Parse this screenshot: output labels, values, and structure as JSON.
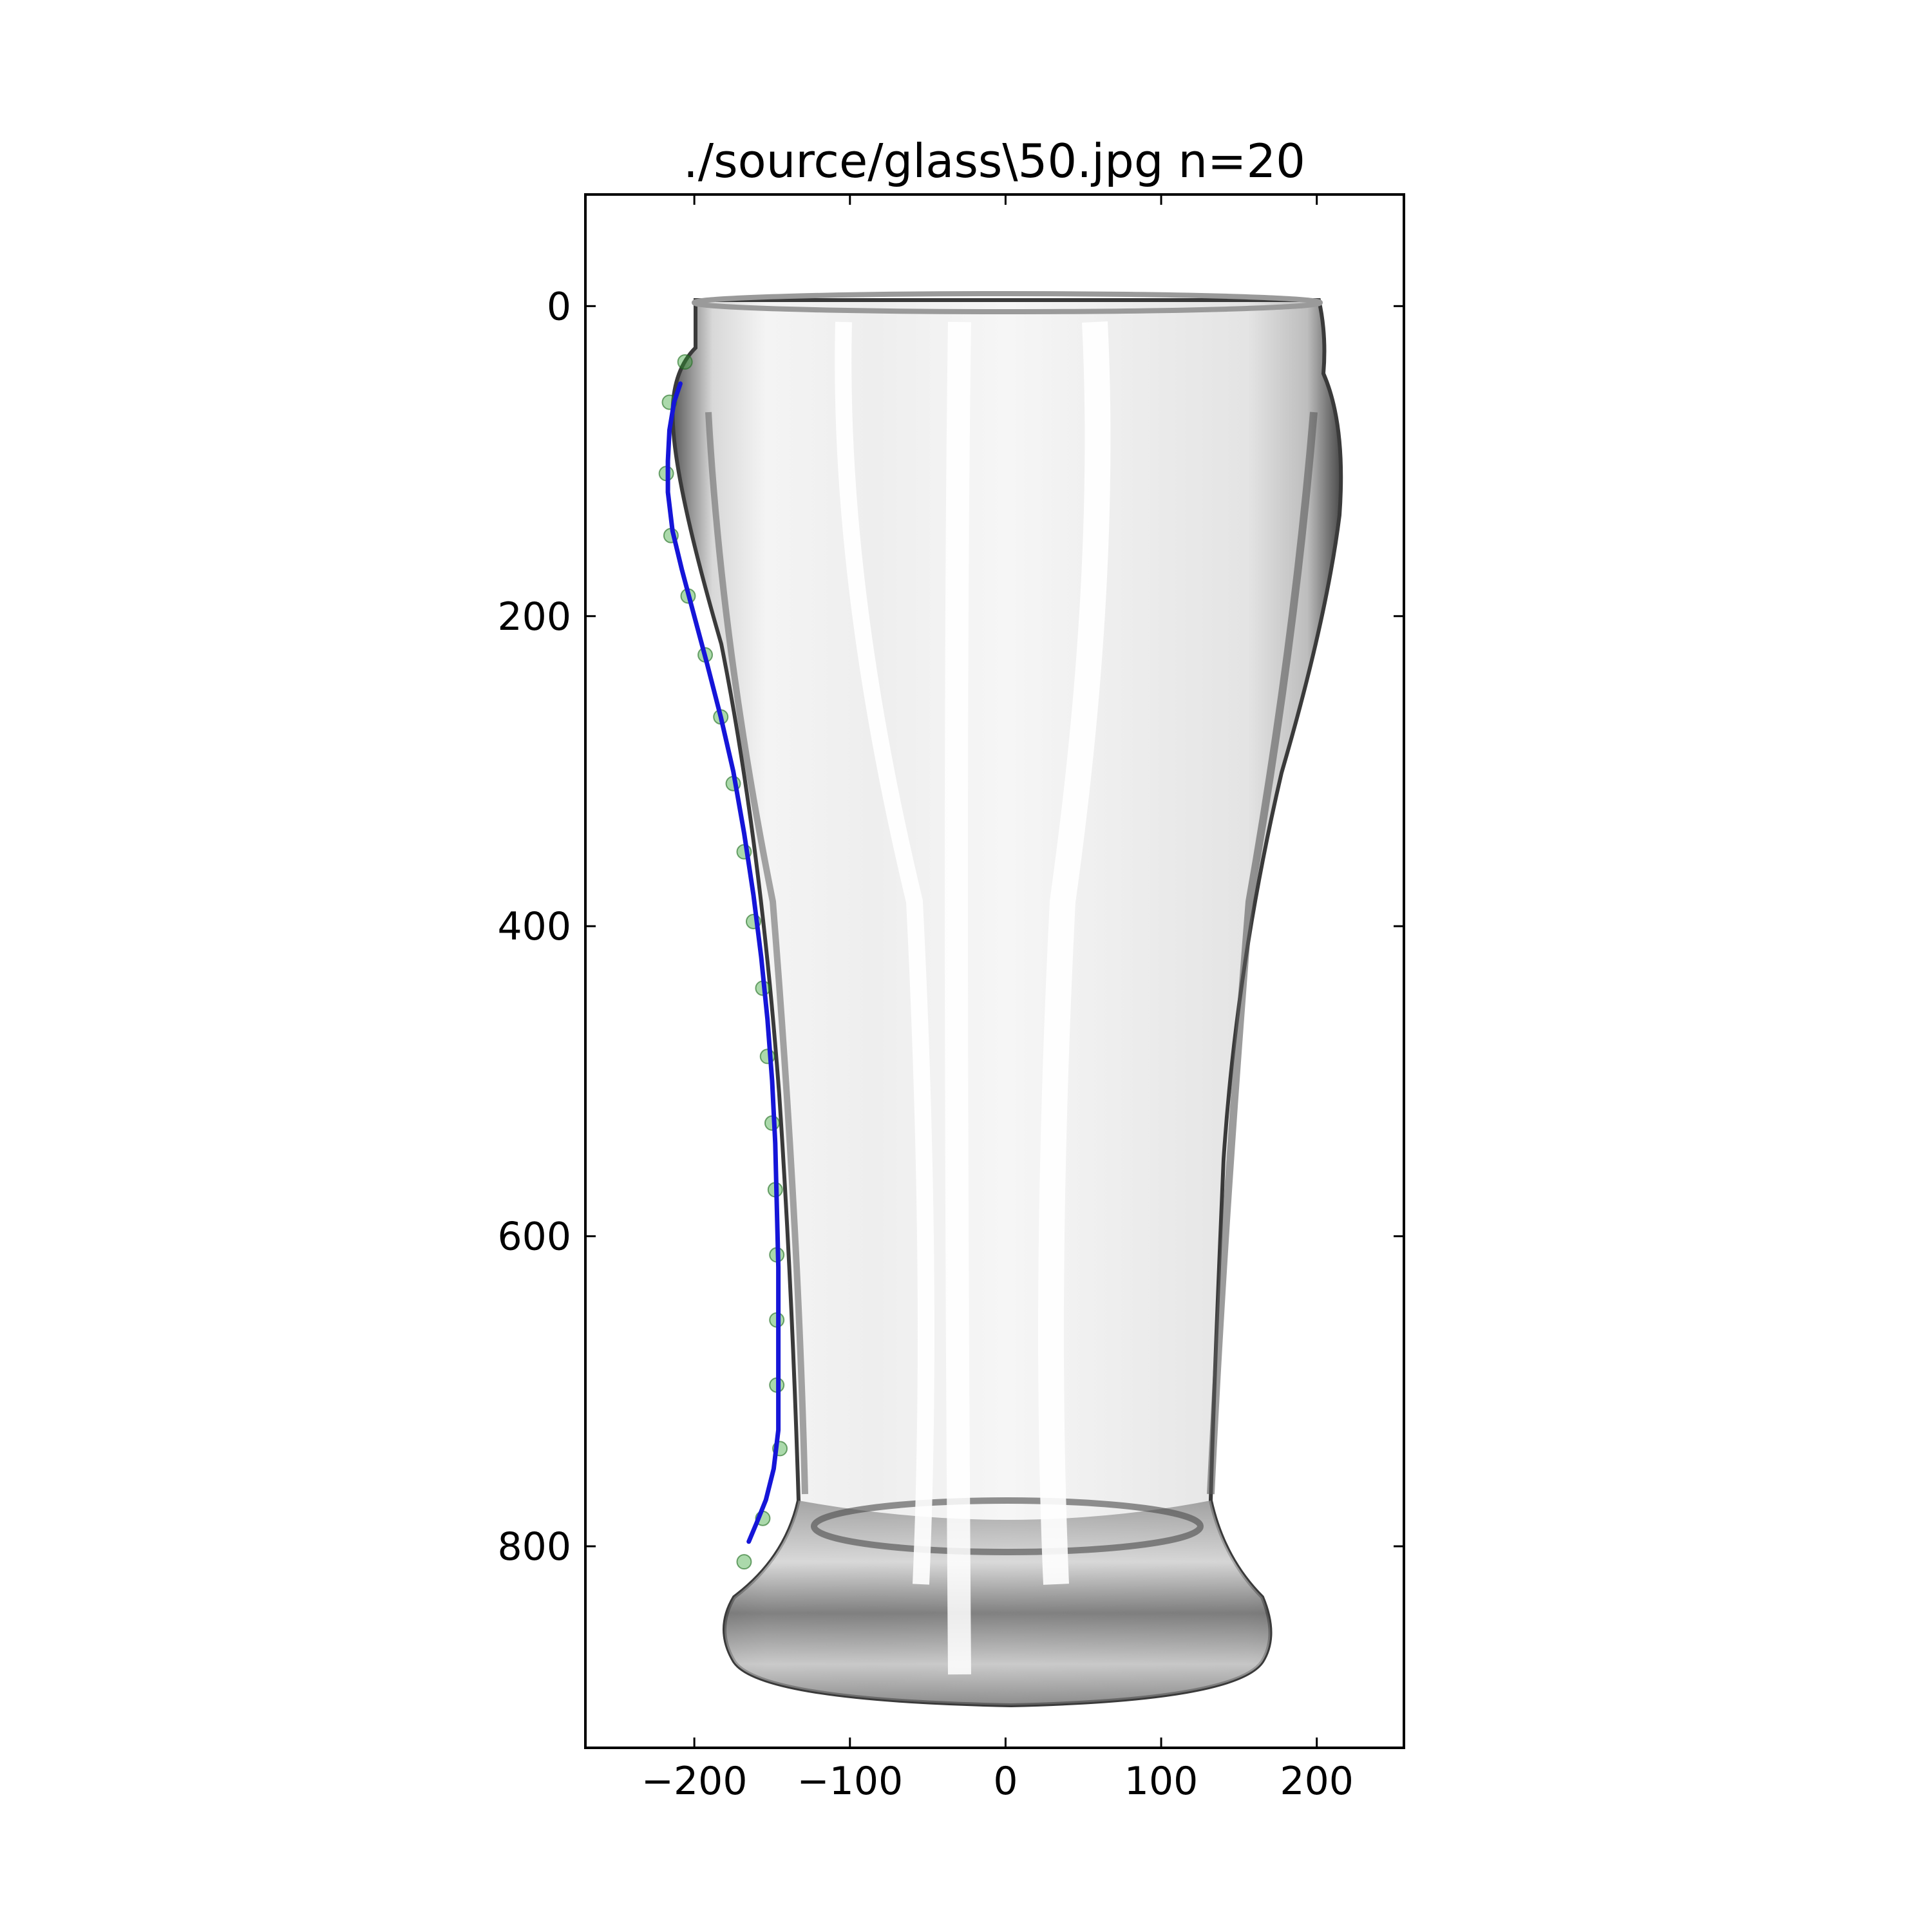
{
  "chart_data": {
    "type": "line",
    "title": "./source/glass\\50.jpg n=20",
    "xlabel": "",
    "ylabel": "",
    "xlim": [
      -270,
      256
    ],
    "ylim": [
      930,
      -72
    ],
    "y_inverted": true,
    "x_ticks": [
      {
        "value": -200,
        "label": "−200"
      },
      {
        "value": -100,
        "label": "−100"
      },
      {
        "value": 0,
        "label": "0"
      },
      {
        "value": 100,
        "label": "100"
      },
      {
        "value": 200,
        "label": "200"
      }
    ],
    "y_ticks": [
      {
        "value": 0,
        "label": "0"
      },
      {
        "value": 200,
        "label": "200"
      },
      {
        "value": 400,
        "label": "400"
      },
      {
        "value": 600,
        "label": "600"
      },
      {
        "value": 800,
        "label": "800"
      }
    ],
    "background_image": "pint glass photo",
    "grid": false,
    "series": [
      {
        "type": "scatter",
        "color": "#2ca02c",
        "points": [
          [
            -206,
            36
          ],
          [
            -216,
            62
          ],
          [
            -218,
            108
          ],
          [
            -215,
            148
          ],
          [
            -204,
            187
          ],
          [
            -193,
            225
          ],
          [
            -183,
            265
          ],
          [
            -175,
            308
          ],
          [
            -168,
            352
          ],
          [
            -162,
            397
          ],
          [
            -156,
            440
          ],
          [
            -153,
            484
          ],
          [
            -150,
            527
          ],
          [
            -148,
            570
          ],
          [
            -147,
            612
          ],
          [
            -147,
            654
          ],
          [
            -147,
            696
          ],
          [
            -145,
            737
          ],
          [
            -156,
            782
          ],
          [
            -168,
            810
          ]
        ]
      },
      {
        "type": "line",
        "color": "#1515d8",
        "points": [
          [
            -209,
            50
          ],
          [
            -213,
            62
          ],
          [
            -216,
            80
          ],
          [
            -217,
            100
          ],
          [
            -217,
            120
          ],
          [
            -214,
            145
          ],
          [
            -208,
            170
          ],
          [
            -200,
            200
          ],
          [
            -192,
            230
          ],
          [
            -183,
            265
          ],
          [
            -175,
            300
          ],
          [
            -168,
            340
          ],
          [
            -162,
            380
          ],
          [
            -157,
            420
          ],
          [
            -153,
            460
          ],
          [
            -150,
            500
          ],
          [
            -148,
            540
          ],
          [
            -147,
            580
          ],
          [
            -146,
            620
          ],
          [
            -146,
            660
          ],
          [
            -146,
            700
          ],
          [
            -146,
            725
          ],
          [
            -149,
            750
          ],
          [
            -154,
            770
          ],
          [
            -160,
            785
          ],
          [
            -165,
            797
          ]
        ]
      }
    ]
  }
}
